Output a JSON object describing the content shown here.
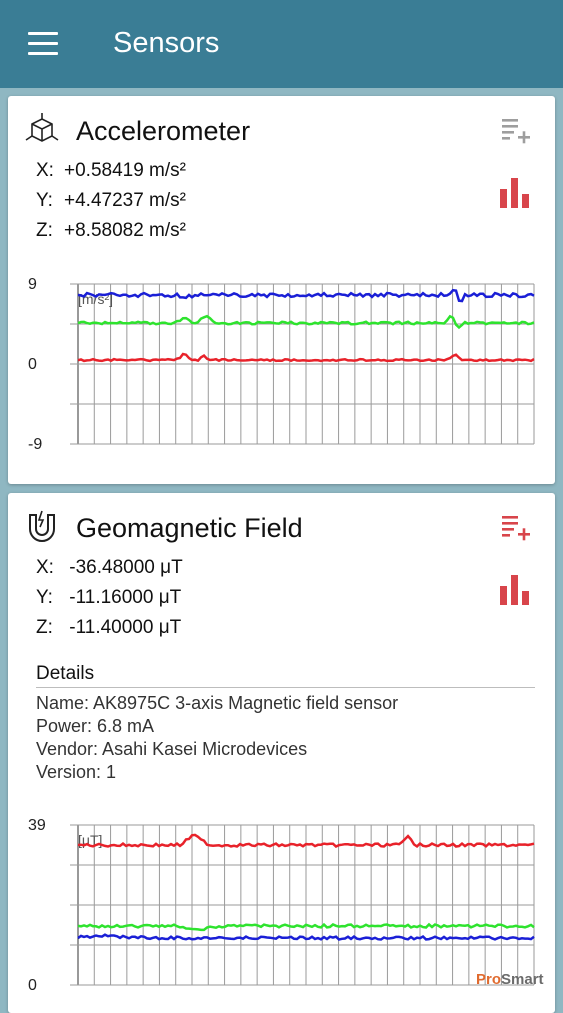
{
  "app_bar": {
    "title": "Sensors"
  },
  "accelerometer": {
    "title": "Accelerometer",
    "readings": [
      {
        "axis": "X:",
        "value": "+0.58419 m/s²"
      },
      {
        "axis": "Y:",
        "value": "+4.47237 m/s²"
      },
      {
        "axis": "Z:",
        "value": "+8.58082 m/s²"
      }
    ],
    "chart": {
      "y_max": "9",
      "y_mid": "0",
      "y_min": "-9",
      "unit": "[m/s²]"
    }
  },
  "geomagnetic": {
    "title": "Geomagnetic Field",
    "readings": [
      {
        "axis": "X:",
        "value": " -36.48000 μT"
      },
      {
        "axis": "Y:",
        "value": " -11.16000 μT"
      },
      {
        "axis": "Z:",
        "value": " -11.40000 μT"
      }
    ],
    "details": {
      "heading": "Details",
      "lines": [
        "Name: AK8975C 3-axis Magnetic field sensor",
        "Power: 6.8 mA",
        "Vendor: Asahi Kasei Microdevices",
        "Version: 1"
      ]
    },
    "chart": {
      "y_max": "39",
      "y_min": "0",
      "unit": "[μT]"
    }
  },
  "colors": {
    "app_bar": "#3a7d95",
    "series_x": "#e8222a",
    "series_y": "#2ee32e",
    "series_z": "#1a1fd6",
    "accent_red": "#d8454b",
    "icon_grey": "#9e9e9e"
  },
  "icons": {
    "menu": "hamburger-icon",
    "accelerometer": "cube-axes-icon",
    "geomagnetic": "magnet-icon",
    "add_log": "playlist-add-icon",
    "chart": "bar-chart-icon"
  },
  "watermark": {
    "part1": "Pro",
    "part2": "Smart"
  }
}
